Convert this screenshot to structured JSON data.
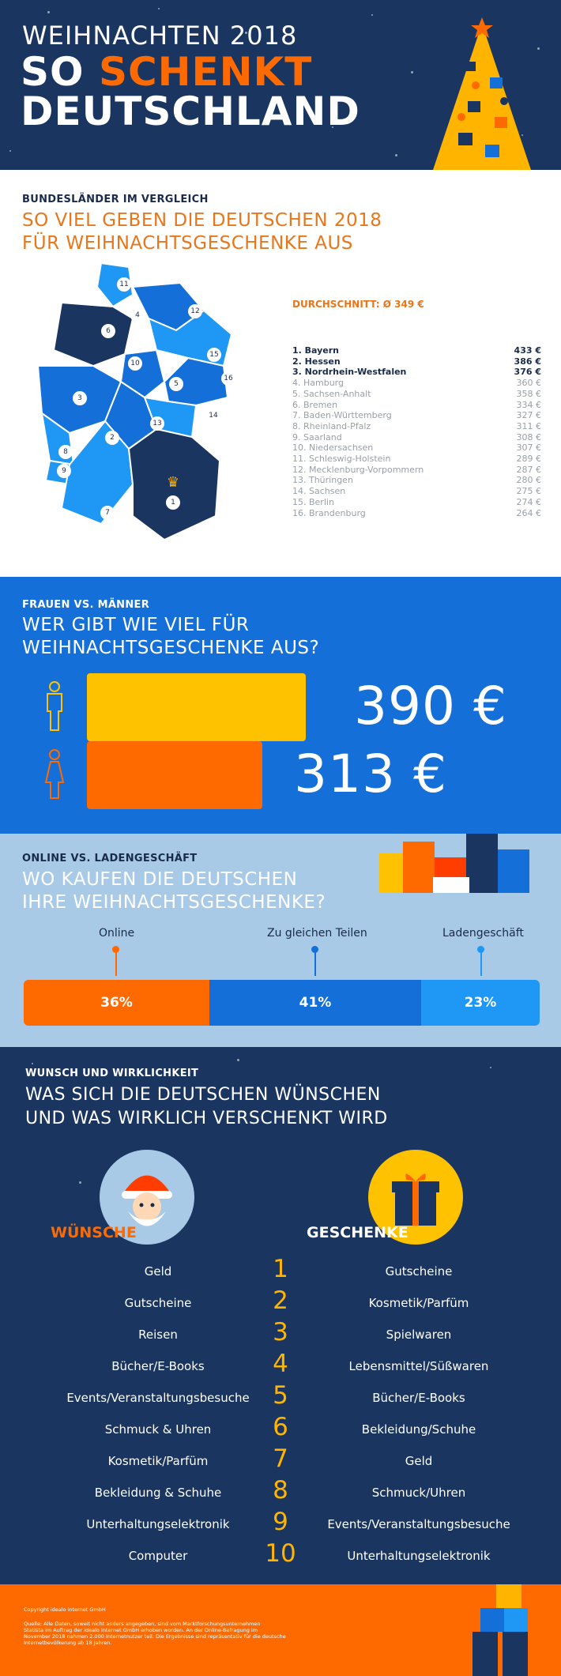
{
  "header": {
    "line1": "WEIHNACHTEN 2018",
    "line2a": "SO",
    "line2b": "SCHENKT",
    "line3": "DEUTSCHLAND"
  },
  "states": {
    "subtitle": "BUNDESLÄNDER IM VERGLEICH",
    "title_line1": "SO VIEL GEBEN DIE DEUTSCHEN 2018",
    "title_line2": "FÜR WEIHNACHTSGESCHENKE AUS",
    "average": "DURCHSCHNITT: Ø 349 €",
    "ranking": [
      {
        "label": "1. Bayern",
        "value": "433 €"
      },
      {
        "label": "2. Hessen",
        "value": "386 €"
      },
      {
        "label": "3. Nordrhein-Westfalen",
        "value": "376 €"
      },
      {
        "label": "4. Hamburg",
        "value": "360 €"
      },
      {
        "label": "5. Sachsen-Anhalt",
        "value": "358 €"
      },
      {
        "label": "6. Bremen",
        "value": "334 €"
      },
      {
        "label": "7. Baden-Württemberg",
        "value": "327 €"
      },
      {
        "label": "8. Rheinland-Pfalz",
        "value": "311 €"
      },
      {
        "label": "9. Saarland",
        "value": "308 €"
      },
      {
        "label": "10. Niedersachsen",
        "value": "307 €"
      },
      {
        "label": "11. Schleswig-Holstein",
        "value": "289 €"
      },
      {
        "label": "12. Mecklenburg-Vorpommern",
        "value": "287 €"
      },
      {
        "label": "13. Thüringen",
        "value": "280 €"
      },
      {
        "label": "14. Sachsen",
        "value": "275 €"
      },
      {
        "label": "15. Berlin",
        "value": "274 €"
      },
      {
        "label": "16. Brandenburg",
        "value": "264 €"
      }
    ],
    "map_numbers": [
      "1",
      "2",
      "3",
      "4",
      "5",
      "6",
      "7",
      "8",
      "9",
      "10",
      "11",
      "12",
      "13",
      "14",
      "15",
      "16"
    ]
  },
  "gender": {
    "subtitle": "FRAUEN VS. MÄNNER",
    "title_line1": "WER GIBT WIE VIEL FÜR",
    "title_line2": "WEIHNACHTSGESCHENKE AUS?",
    "men_value": "390 €",
    "women_value": "313 €",
    "men_amount": 390,
    "women_amount": 313
  },
  "online": {
    "subtitle": "ONLINE VS. LADENGESCHÄFT",
    "title_line1": "WO KAUFEN DIE DEUTSCHEN",
    "title_line2": "IHRE WEIHNACHTSGESCHENKE?",
    "segments": [
      {
        "label": "Online",
        "value": "36%",
        "share": 36,
        "color": "#ff6a00"
      },
      {
        "label": "Zu gleichen Teilen",
        "value": "41%",
        "share": 41,
        "color": "#1470d8"
      },
      {
        "label": "Ladengeschäft",
        "value": "23%",
        "share": 23,
        "color": "#1f97f5"
      }
    ]
  },
  "wishes": {
    "subtitle": "WUNSCH UND WIRKLICHKEIT",
    "title_line1": "WAS SICH DIE DEUTSCHEN WÜNSCHEN",
    "title_line2": "UND WAS WIRKLICH VERSCHENKT WIRD",
    "left_heading": "WÜNSCHE",
    "right_heading": "GESCHENKE",
    "numbers": [
      "1",
      "2",
      "3",
      "4",
      "5",
      "6",
      "7",
      "8",
      "9",
      "10"
    ],
    "wishes_list": [
      "Geld",
      "Gutscheine",
      "Reisen",
      "Bücher/E-Books",
      "Events/Veranstaltungsbesuche",
      "Schmuck & Uhren",
      "Kosmetik/Parfüm",
      "Bekleidung & Schuhe",
      "Unterhaltungselektronik",
      "Computer"
    ],
    "gifts_list": [
      "Gutscheine",
      "Kosmetik/Parfüm",
      "Spielwaren",
      "Lebensmittel/Süßwaren",
      "Bücher/E-Books",
      "Bekleidung/Schuhe",
      "Geld",
      "Schmuck/Uhren",
      "Events/Veranstaltungsbesuche",
      "Unterhaltungselektronik"
    ]
  },
  "footer": {
    "copyright": "Copyright idealo internet GmbH",
    "source_1": "Quelle: Alle Daten, soweit nicht anders angegeben, sind vom Marktforschungsunternehmen",
    "source_2": "Statista im Auftrag der idealo internet GmbH erhoben worden. An der Online-Befragung im",
    "source_3": "November 2018 nahmen 2.000 Internetnutzer teil. Die Ergebnisse sind repräsentativ für die deutsche",
    "source_4": "Internetbevölkerung ab 18 Jahren."
  },
  "colors": {
    "navy": "#1a3560",
    "orange": "#ff6a00",
    "yellow": "#ffc200",
    "blue": "#1470d8",
    "light_blue": "#a8cae6"
  }
}
